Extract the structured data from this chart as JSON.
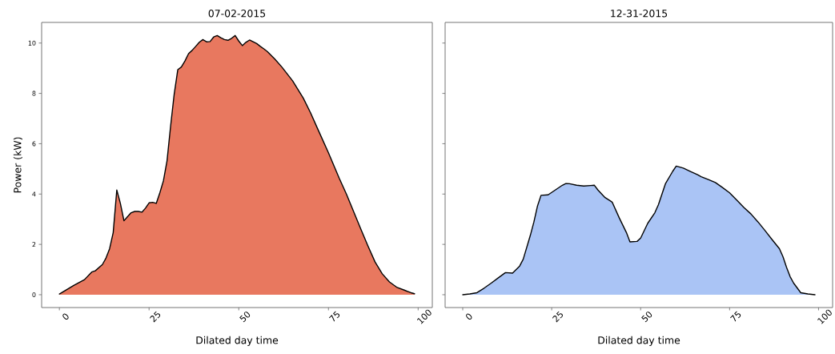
{
  "chart_data": [
    {
      "type": "area",
      "title": "07-02-2015",
      "xlabel": "Dilated day time",
      "ylabel": "Power (kW)",
      "x": [
        0,
        4,
        7,
        9,
        10,
        12,
        13,
        14,
        15,
        16,
        17,
        18,
        19,
        20,
        21,
        22,
        23,
        24,
        25,
        26,
        27,
        28,
        29,
        30,
        31,
        32,
        33,
        34,
        35,
        36,
        37,
        38,
        39,
        40,
        41,
        42,
        43,
        44,
        45,
        46,
        47,
        48,
        49,
        50,
        51,
        52,
        53,
        54,
        55,
        56,
        57,
        58,
        60,
        62,
        65,
        68,
        70,
        72,
        75,
        78,
        80,
        82,
        84,
        86,
        88,
        90,
        92,
        94,
        96,
        98,
        99
      ],
      "values": [
        0.03,
        0.37,
        0.6,
        0.9,
        0.95,
        1.2,
        1.46,
        1.83,
        2.47,
        4.16,
        3.63,
        2.94,
        3.1,
        3.26,
        3.31,
        3.31,
        3.28,
        3.44,
        3.65,
        3.67,
        3.63,
        4.05,
        4.53,
        5.32,
        6.7,
        7.97,
        8.94,
        9.05,
        9.29,
        9.58,
        9.71,
        9.87,
        10.03,
        10.14,
        10.05,
        10.06,
        10.24,
        10.3,
        10.21,
        10.14,
        10.11,
        10.19,
        10.3,
        10.08,
        9.9,
        10.03,
        10.12,
        10.05,
        9.98,
        9.87,
        9.77,
        9.66,
        9.37,
        9.05,
        8.5,
        7.81,
        7.23,
        6.59,
        5.64,
        4.63,
        4.0,
        3.31,
        2.62,
        1.94,
        1.3,
        0.83,
        0.51,
        0.3,
        0.19,
        0.08,
        0.04
      ],
      "color": "#e8785f",
      "xlim": [
        -4.95,
        103.95
      ],
      "ylim": [
        -0.51,
        10.82
      ],
      "xticks": [
        0,
        25,
        50,
        75,
        100
      ],
      "yticks": [
        0,
        2,
        4,
        6,
        8,
        10
      ]
    },
    {
      "type": "area",
      "title": "12-31-2015",
      "xlabel": "Dilated day time",
      "x": [
        0,
        2,
        4,
        6,
        8,
        10,
        12,
        14,
        16,
        17,
        19,
        20,
        21,
        22,
        24,
        26,
        28,
        29,
        30,
        32,
        34,
        36,
        37,
        38,
        40,
        42,
        44,
        46,
        47,
        49,
        50,
        52,
        54,
        55,
        56,
        57,
        59,
        60,
        62,
        64,
        66,
        67,
        69,
        71,
        73,
        75,
        77,
        79,
        81,
        83,
        85,
        87,
        89,
        90,
        91,
        92,
        93,
        95,
        97,
        99
      ],
      "values": [
        0,
        0.03,
        0.08,
        0.26,
        0.46,
        0.67,
        0.88,
        0.86,
        1.14,
        1.41,
        2.36,
        2.89,
        3.52,
        3.95,
        3.97,
        4.16,
        4.35,
        4.42,
        4.41,
        4.35,
        4.32,
        4.34,
        4.35,
        4.16,
        3.86,
        3.68,
        3.05,
        2.47,
        2.1,
        2.12,
        2.25,
        2.84,
        3.26,
        3.58,
        4.0,
        4.42,
        4.9,
        5.11,
        5.03,
        4.9,
        4.77,
        4.69,
        4.58,
        4.46,
        4.26,
        4.05,
        3.76,
        3.47,
        3.21,
        2.89,
        2.54,
        2.18,
        1.83,
        1.51,
        1.09,
        0.72,
        0.46,
        0.08,
        0.03,
        0
      ],
      "color": "#aac4f5",
      "xlim": [
        -4.95,
        103.95
      ],
      "ylim": [
        -0.51,
        10.82
      ],
      "xticks": [
        0,
        25,
        50,
        75,
        100
      ],
      "yticks": [
        0,
        2,
        4,
        6,
        8,
        10
      ],
      "tick_labels": "x"
    }
  ]
}
